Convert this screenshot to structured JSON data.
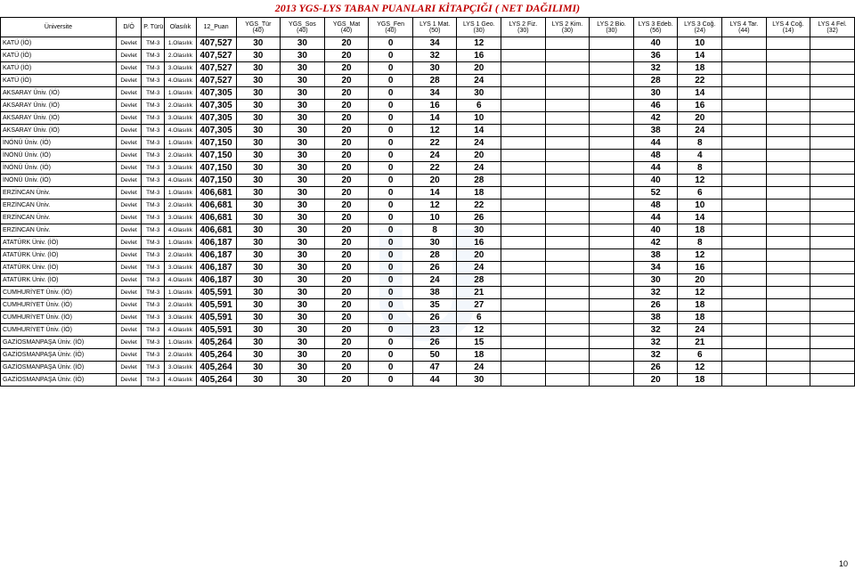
{
  "title": "2013 YGS-LYS TABAN PUANLARI KİTAPÇIĞI ( NET DAĞILIMI)",
  "page_number": "10",
  "columns": [
    {
      "key": "uni",
      "label": "Üniversite"
    },
    {
      "key": "do",
      "label": "D/Ö"
    },
    {
      "key": "pt",
      "label": "P. Türü"
    },
    {
      "key": "ol",
      "label": "Olasılık"
    },
    {
      "key": "puan",
      "label": "12_Puan"
    },
    {
      "key": "c0",
      "label": "YGS_Tür\n(40)"
    },
    {
      "key": "c1",
      "label": "YGS_Sos\n(40)"
    },
    {
      "key": "c2",
      "label": "YGS_Mat\n(40)"
    },
    {
      "key": "c3",
      "label": "YGS_Fen\n(40)"
    },
    {
      "key": "c4",
      "label": "LYS 1 Mat.\n(50)"
    },
    {
      "key": "c5",
      "label": "LYS 1 Geo.\n(30)"
    },
    {
      "key": "c6",
      "label": "LYS 2 Fiz.\n(30)"
    },
    {
      "key": "c7",
      "label": "LYS 2 Kim.\n(30)"
    },
    {
      "key": "c8",
      "label": "LYS 2 Bio.\n(30)"
    },
    {
      "key": "c9",
      "label": "LYS 3 Edeb.\n(56)"
    },
    {
      "key": "c10",
      "label": "LYS 3 Coğ.\n(24)"
    },
    {
      "key": "c11",
      "label": "LYS 4 Tar.\n(44)"
    },
    {
      "key": "c12",
      "label": "LYS 4 Coğ.\n(14)"
    },
    {
      "key": "c13",
      "label": "LYS 4 Fel.\n(32)"
    }
  ],
  "rows": [
    {
      "uni": "KATÜ (İÖ)",
      "do": "Devlet",
      "pt": "TM-3",
      "ol": "1.Olasılık",
      "puan": "407,527",
      "v": [
        "30",
        "30",
        "20",
        "0",
        "34",
        "12",
        "",
        "",
        "",
        "40",
        "10",
        "",
        "",
        ""
      ]
    },
    {
      "uni": "KATÜ (İÖ)",
      "do": "Devlet",
      "pt": "TM-3",
      "ol": "2.Olasılık",
      "puan": "407,527",
      "v": [
        "30",
        "30",
        "20",
        "0",
        "32",
        "16",
        "",
        "",
        "",
        "36",
        "14",
        "",
        "",
        ""
      ]
    },
    {
      "uni": "KATÜ (İÖ)",
      "do": "Devlet",
      "pt": "TM-3",
      "ol": "3.Olasılık",
      "puan": "407,527",
      "v": [
        "30",
        "30",
        "20",
        "0",
        "30",
        "20",
        "",
        "",
        "",
        "32",
        "18",
        "",
        "",
        ""
      ]
    },
    {
      "uni": "KATÜ (İÖ)",
      "do": "Devlet",
      "pt": "TM-3",
      "ol": "4.Olasılık",
      "puan": "407,527",
      "v": [
        "30",
        "30",
        "20",
        "0",
        "28",
        "24",
        "",
        "",
        "",
        "28",
        "22",
        "",
        "",
        ""
      ]
    },
    {
      "uni": "AKSARAY Üniv. (İÖ)",
      "do": "Devlet",
      "pt": "TM-3",
      "ol": "1.Olasılık",
      "puan": "407,305",
      "v": [
        "30",
        "30",
        "20",
        "0",
        "34",
        "30",
        "",
        "",
        "",
        "30",
        "14",
        "",
        "",
        ""
      ]
    },
    {
      "uni": "AKSARAY Üniv. (İÖ)",
      "do": "Devlet",
      "pt": "TM-3",
      "ol": "2.Olasılık",
      "puan": "407,305",
      "v": [
        "30",
        "30",
        "20",
        "0",
        "16",
        "6",
        "",
        "",
        "",
        "46",
        "16",
        "",
        "",
        ""
      ]
    },
    {
      "uni": "AKSARAY Üniv. (İÖ)",
      "do": "Devlet",
      "pt": "TM-3",
      "ol": "3.Olasılık",
      "puan": "407,305",
      "v": [
        "30",
        "30",
        "20",
        "0",
        "14",
        "10",
        "",
        "",
        "",
        "42",
        "20",
        "",
        "",
        ""
      ]
    },
    {
      "uni": "AKSARAY Üniv. (İÖ)",
      "do": "Devlet",
      "pt": "TM-3",
      "ol": "4.Olasılık",
      "puan": "407,305",
      "v": [
        "30",
        "30",
        "20",
        "0",
        "12",
        "14",
        "",
        "",
        "",
        "38",
        "24",
        "",
        "",
        ""
      ]
    },
    {
      "uni": "İNÖNÜ Üniv. (İÖ)",
      "do": "Devlet",
      "pt": "TM-3",
      "ol": "1.Olasılık",
      "puan": "407,150",
      "v": [
        "30",
        "30",
        "20",
        "0",
        "22",
        "24",
        "",
        "",
        "",
        "44",
        "8",
        "",
        "",
        ""
      ]
    },
    {
      "uni": "İNÖNÜ Üniv. (İÖ)",
      "do": "Devlet",
      "pt": "TM-3",
      "ol": "2.Olasılık",
      "puan": "407,150",
      "v": [
        "30",
        "30",
        "20",
        "0",
        "24",
        "20",
        "",
        "",
        "",
        "48",
        "4",
        "",
        "",
        ""
      ]
    },
    {
      "uni": "İNÖNÜ Üniv. (İÖ)",
      "do": "Devlet",
      "pt": "TM-3",
      "ol": "3.Olasılık",
      "puan": "407,150",
      "v": [
        "30",
        "30",
        "20",
        "0",
        "22",
        "24",
        "",
        "",
        "",
        "44",
        "8",
        "",
        "",
        ""
      ]
    },
    {
      "uni": "İNÖNÜ Üniv. (İÖ)",
      "do": "Devlet",
      "pt": "TM-3",
      "ol": "4.Olasılık",
      "puan": "407,150",
      "v": [
        "30",
        "30",
        "20",
        "0",
        "20",
        "28",
        "",
        "",
        "",
        "40",
        "12",
        "",
        "",
        ""
      ]
    },
    {
      "uni": "ERZİNCAN Üniv.",
      "do": "Devlet",
      "pt": "TM-3",
      "ol": "1.Olasılık",
      "puan": "406,681",
      "v": [
        "30",
        "30",
        "20",
        "0",
        "14",
        "18",
        "",
        "",
        "",
        "52",
        "6",
        "",
        "",
        ""
      ]
    },
    {
      "uni": "ERZİNCAN Üniv.",
      "do": "Devlet",
      "pt": "TM-3",
      "ol": "2.Olasılık",
      "puan": "406,681",
      "v": [
        "30",
        "30",
        "20",
        "0",
        "12",
        "22",
        "",
        "",
        "",
        "48",
        "10",
        "",
        "",
        ""
      ]
    },
    {
      "uni": "ERZİNCAN Üniv.",
      "do": "Devlet",
      "pt": "TM-3",
      "ol": "3.Olasılık",
      "puan": "406,681",
      "v": [
        "30",
        "30",
        "20",
        "0",
        "10",
        "26",
        "",
        "",
        "",
        "44",
        "14",
        "",
        "",
        ""
      ]
    },
    {
      "uni": "ERZİNCAN Üniv.",
      "do": "Devlet",
      "pt": "TM-3",
      "ol": "4.Olasılık",
      "puan": "406,681",
      "v": [
        "30",
        "30",
        "20",
        "0",
        "8",
        "30",
        "",
        "",
        "",
        "40",
        "18",
        "",
        "",
        ""
      ]
    },
    {
      "uni": "ATATÜRK Üniv. (İÖ)",
      "do": "Devlet",
      "pt": "TM-3",
      "ol": "1.Olasılık",
      "puan": "406,187",
      "v": [
        "30",
        "30",
        "20",
        "0",
        "30",
        "16",
        "",
        "",
        "",
        "42",
        "8",
        "",
        "",
        ""
      ]
    },
    {
      "uni": "ATATÜRK Üniv. (İÖ)",
      "do": "Devlet",
      "pt": "TM-3",
      "ol": "2.Olasılık",
      "puan": "406,187",
      "v": [
        "30",
        "30",
        "20",
        "0",
        "28",
        "20",
        "",
        "",
        "",
        "38",
        "12",
        "",
        "",
        ""
      ]
    },
    {
      "uni": "ATATÜRK Üniv. (İÖ)",
      "do": "Devlet",
      "pt": "TM-3",
      "ol": "3.Olasılık",
      "puan": "406,187",
      "v": [
        "30",
        "30",
        "20",
        "0",
        "26",
        "24",
        "",
        "",
        "",
        "34",
        "16",
        "",
        "",
        ""
      ]
    },
    {
      "uni": "ATATÜRK Üniv. (İÖ)",
      "do": "Devlet",
      "pt": "TM-3",
      "ol": "4.Olasılık",
      "puan": "406,187",
      "v": [
        "30",
        "30",
        "20",
        "0",
        "24",
        "28",
        "",
        "",
        "",
        "30",
        "20",
        "",
        "",
        ""
      ]
    },
    {
      "uni": "CUMHURİYET Üniv. (İÖ)",
      "do": "Devlet",
      "pt": "TM-3",
      "ol": "1.Olasılık",
      "puan": "405,591",
      "v": [
        "30",
        "30",
        "20",
        "0",
        "38",
        "21",
        "",
        "",
        "",
        "32",
        "12",
        "",
        "",
        ""
      ]
    },
    {
      "uni": "CUMHURİYET Üniv. (İÖ)",
      "do": "Devlet",
      "pt": "TM-3",
      "ol": "2.Olasılık",
      "puan": "405,591",
      "v": [
        "30",
        "30",
        "20",
        "0",
        "35",
        "27",
        "",
        "",
        "",
        "26",
        "18",
        "",
        "",
        ""
      ]
    },
    {
      "uni": "CUMHURİYET Üniv. (İÖ)",
      "do": "Devlet",
      "pt": "TM-3",
      "ol": "3.Olasılık",
      "puan": "405,591",
      "v": [
        "30",
        "30",
        "20",
        "0",
        "26",
        "6",
        "",
        "",
        "",
        "38",
        "18",
        "",
        "",
        ""
      ]
    },
    {
      "uni": "CUMHURİYET Üniv. (İÖ)",
      "do": "Devlet",
      "pt": "TM-3",
      "ol": "4.Olasılık",
      "puan": "405,591",
      "v": [
        "30",
        "30",
        "20",
        "0",
        "23",
        "12",
        "",
        "",
        "",
        "32",
        "24",
        "",
        "",
        ""
      ]
    },
    {
      "uni": "GAZİOSMANPAŞA Üniv. (İÖ)",
      "do": "Devlet",
      "pt": "TM-3",
      "ol": "1.Olasılık",
      "puan": "405,264",
      "v": [
        "30",
        "30",
        "20",
        "0",
        "26",
        "15",
        "",
        "",
        "",
        "32",
        "21",
        "",
        "",
        ""
      ]
    },
    {
      "uni": "GAZİOSMANPAŞA Üniv. (İÖ)",
      "do": "Devlet",
      "pt": "TM-3",
      "ol": "2.Olasılık",
      "puan": "405,264",
      "v": [
        "30",
        "30",
        "20",
        "0",
        "50",
        "18",
        "",
        "",
        "",
        "32",
        "6",
        "",
        "",
        ""
      ]
    },
    {
      "uni": "GAZİOSMANPAŞA Üniv. (İÖ)",
      "do": "Devlet",
      "pt": "TM-3",
      "ol": "3.Olasılık",
      "puan": "405,264",
      "v": [
        "30",
        "30",
        "20",
        "0",
        "47",
        "24",
        "",
        "",
        "",
        "26",
        "12",
        "",
        "",
        ""
      ]
    },
    {
      "uni": "GAZİOSMANPAŞA Üniv. (İÖ)",
      "do": "Devlet",
      "pt": "TM-3",
      "ol": "4.Olasılık",
      "puan": "405,264",
      "v": [
        "30",
        "30",
        "20",
        "0",
        "44",
        "30",
        "",
        "",
        "",
        "20",
        "18",
        "",
        "",
        ""
      ]
    }
  ]
}
